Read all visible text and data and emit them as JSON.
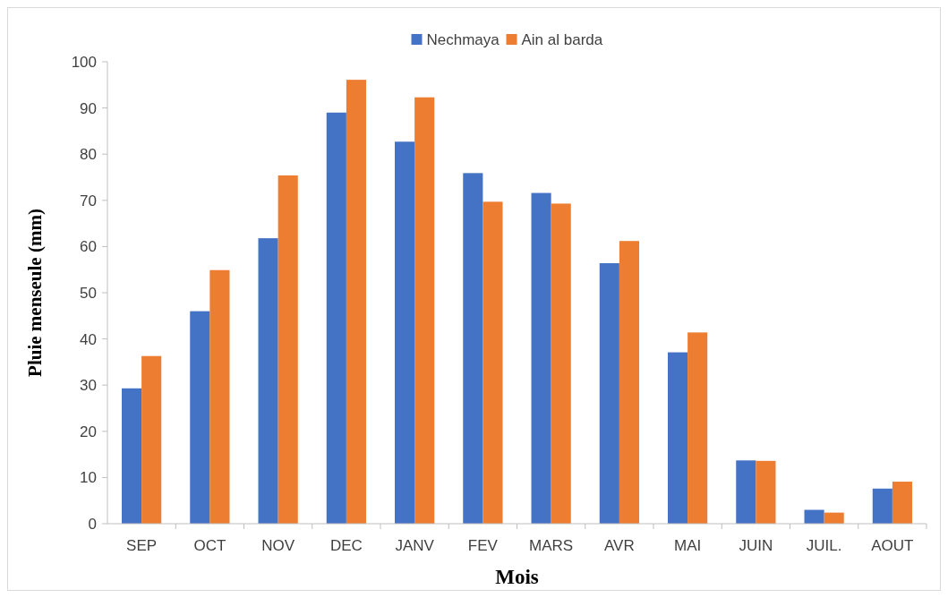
{
  "chart_data": {
    "type": "bar",
    "xlabel": "Mois",
    "ylabel": "Pluie menseule (mm)",
    "categories": [
      "SEP",
      "OCT",
      "NOV",
      "DEC",
      "JANV",
      "FEV",
      "MARS",
      "AVR",
      "MAI",
      "JUIN",
      "JUIL.",
      "AOUT"
    ],
    "series": [
      {
        "name": "Nechmaya",
        "color": "#4472c4",
        "values": [
          29.3,
          46,
          61.8,
          89,
          82.7,
          75.9,
          71.6,
          56.4,
          37.1,
          13.7,
          3,
          7.6
        ]
      },
      {
        "name": "Ain al barda",
        "color": "#ed7d31",
        "values": [
          36.3,
          54.9,
          75.4,
          96.1,
          92.3,
          69.7,
          69.3,
          61.2,
          41.4,
          13.6,
          2.4,
          9.1
        ]
      }
    ],
    "ylim": [
      0,
      100
    ],
    "yticks": [
      0,
      10,
      20,
      30,
      40,
      50,
      60,
      70,
      80,
      90,
      100
    ],
    "grid": false,
    "legend": "top"
  }
}
